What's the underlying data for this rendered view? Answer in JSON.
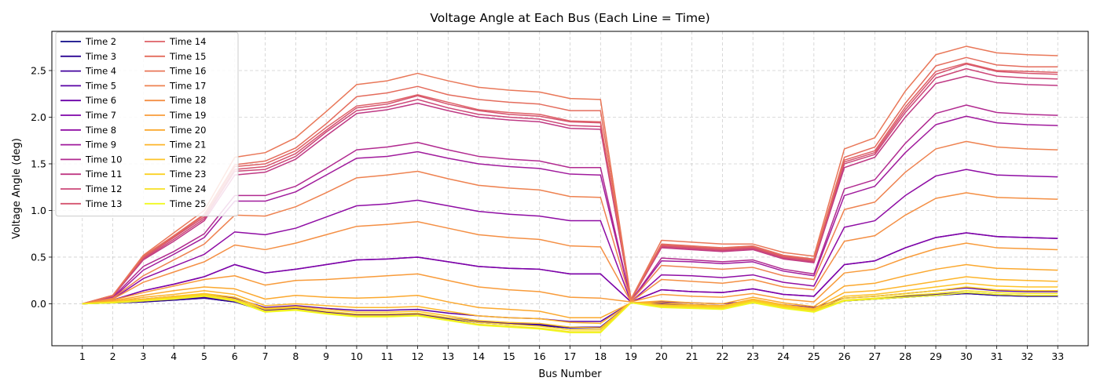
{
  "chart_data": {
    "type": "line",
    "title": "Voltage Angle at Each Bus (Each Line = Time)",
    "xlabel": "Bus Number",
    "ylabel": "Voltage Angle (deg)",
    "x": [
      1,
      2,
      3,
      4,
      5,
      6,
      7,
      8,
      9,
      10,
      11,
      12,
      13,
      14,
      15,
      16,
      17,
      18,
      19,
      20,
      21,
      22,
      23,
      24,
      25,
      26,
      27,
      28,
      29,
      30,
      31,
      32,
      33
    ],
    "x_ticks": [
      "1",
      "2",
      "3",
      "4",
      "5",
      "6",
      "7",
      "8",
      "9",
      "10",
      "11",
      "12",
      "13",
      "14",
      "15",
      "16",
      "17",
      "18",
      "19",
      "20",
      "21",
      "22",
      "23",
      "24",
      "25",
      "26",
      "27",
      "28",
      "29",
      "30",
      "31",
      "32",
      "33"
    ],
    "ylim": [
      -0.45,
      2.92
    ],
    "y_ticks": [
      0.0,
      0.5,
      1.0,
      1.5,
      2.0,
      2.5
    ],
    "y_tick_labels": [
      "0.0",
      "0.5",
      "1.0",
      "1.5",
      "2.0",
      "2.5"
    ],
    "grid": true,
    "legend_position": "upper-left",
    "legend_columns": 2,
    "series": [
      {
        "name": "Time 2",
        "color": "#0d0887",
        "values": [
          0,
          0.01,
          0.02,
          0.04,
          0.06,
          0.02,
          -0.08,
          -0.06,
          -0.1,
          -0.13,
          -0.13,
          -0.12,
          -0.16,
          -0.2,
          -0.22,
          -0.23,
          -0.26,
          -0.26,
          0.01,
          0.0,
          -0.01,
          -0.02,
          0.01,
          -0.03,
          -0.06,
          0.03,
          0.05,
          0.07,
          0.09,
          0.11,
          0.09,
          0.08,
          0.08
        ]
      },
      {
        "name": "Time 3",
        "color": "#2c0594",
        "values": [
          0,
          0.01,
          0.02,
          0.04,
          0.06,
          0.02,
          -0.08,
          -0.06,
          -0.1,
          -0.13,
          -0.13,
          -0.12,
          -0.16,
          -0.2,
          -0.22,
          -0.23,
          -0.26,
          -0.26,
          0.01,
          0.0,
          -0.01,
          -0.02,
          0.01,
          -0.03,
          -0.06,
          0.03,
          0.05,
          0.07,
          0.09,
          0.11,
          0.09,
          0.08,
          0.08
        ]
      },
      {
        "name": "Time 4",
        "color": "#43039e",
        "values": [
          0,
          0.02,
          0.03,
          0.05,
          0.07,
          0.03,
          -0.07,
          -0.05,
          -0.09,
          -0.12,
          -0.12,
          -0.11,
          -0.15,
          -0.19,
          -0.21,
          -0.22,
          -0.25,
          -0.25,
          0.01,
          0.0,
          -0.01,
          -0.02,
          0.02,
          -0.03,
          -0.06,
          0.03,
          0.05,
          0.08,
          0.1,
          0.12,
          0.1,
          0.09,
          0.09
        ]
      },
      {
        "name": "Time 5",
        "color": "#5901a5",
        "values": [
          0,
          0.02,
          0.05,
          0.08,
          0.1,
          0.06,
          -0.04,
          -0.02,
          -0.05,
          -0.07,
          -0.07,
          -0.06,
          -0.1,
          -0.13,
          -0.15,
          -0.16,
          -0.19,
          -0.19,
          0.01,
          0.02,
          0.01,
          0.0,
          0.03,
          -0.01,
          -0.04,
          0.06,
          0.08,
          0.11,
          0.14,
          0.17,
          0.14,
          0.13,
          0.13
        ]
      },
      {
        "name": "Time 6",
        "color": "#6a00a8",
        "values": [
          0,
          0.04,
          0.14,
          0.21,
          0.29,
          0.42,
          0.33,
          0.37,
          0.42,
          0.47,
          0.48,
          0.5,
          0.45,
          0.4,
          0.38,
          0.37,
          0.32,
          0.32,
          0.02,
          0.15,
          0.13,
          0.12,
          0.16,
          0.1,
          0.08,
          0.42,
          0.46,
          0.6,
          0.71,
          0.76,
          0.72,
          0.71,
          0.7
        ]
      },
      {
        "name": "Time 7",
        "color": "#7e03a8",
        "values": [
          0,
          0.04,
          0.14,
          0.21,
          0.29,
          0.42,
          0.33,
          0.37,
          0.42,
          0.47,
          0.48,
          0.5,
          0.45,
          0.4,
          0.38,
          0.37,
          0.32,
          0.32,
          0.02,
          0.15,
          0.13,
          0.12,
          0.16,
          0.1,
          0.08,
          0.42,
          0.46,
          0.6,
          0.71,
          0.76,
          0.72,
          0.71,
          0.7
        ]
      },
      {
        "name": "Time 8",
        "color": "#8f0da4",
        "values": [
          0,
          0.05,
          0.27,
          0.4,
          0.53,
          0.77,
          0.74,
          0.81,
          0.93,
          1.05,
          1.07,
          1.11,
          1.05,
          0.99,
          0.96,
          0.94,
          0.89,
          0.89,
          0.02,
          0.31,
          0.3,
          0.28,
          0.31,
          0.23,
          0.19,
          0.82,
          0.89,
          1.16,
          1.37,
          1.44,
          1.38,
          1.37,
          1.36
        ]
      },
      {
        "name": "Time 9",
        "color": "#a01a9c",
        "values": [
          0,
          0.06,
          0.36,
          0.53,
          0.71,
          1.1,
          1.1,
          1.2,
          1.38,
          1.56,
          1.58,
          1.63,
          1.56,
          1.5,
          1.47,
          1.45,
          1.39,
          1.38,
          0.03,
          0.46,
          0.45,
          0.43,
          0.45,
          0.35,
          0.3,
          1.16,
          1.26,
          1.62,
          1.92,
          2.01,
          1.94,
          1.92,
          1.91
        ]
      },
      {
        "name": "Time 10",
        "color": "#b12a90",
        "values": [
          0,
          0.07,
          0.4,
          0.56,
          0.75,
          1.16,
          1.16,
          1.26,
          1.45,
          1.65,
          1.68,
          1.73,
          1.65,
          1.58,
          1.55,
          1.53,
          1.46,
          1.46,
          0.03,
          0.49,
          0.47,
          0.45,
          0.47,
          0.37,
          0.32,
          1.23,
          1.33,
          1.72,
          2.04,
          2.13,
          2.05,
          2.03,
          2.02
        ]
      },
      {
        "name": "Time 11",
        "color": "#bf3984",
        "values": [
          0,
          0.08,
          0.47,
          0.67,
          0.89,
          1.38,
          1.41,
          1.55,
          1.8,
          2.04,
          2.08,
          2.15,
          2.07,
          2.0,
          1.97,
          1.95,
          1.88,
          1.87,
          0.04,
          0.6,
          0.58,
          0.56,
          0.58,
          0.48,
          0.44,
          1.46,
          1.57,
          2.0,
          2.36,
          2.44,
          2.37,
          2.35,
          2.34
        ]
      },
      {
        "name": "Time 12",
        "color": "#cc4778",
        "values": [
          0,
          0.08,
          0.48,
          0.69,
          0.91,
          1.42,
          1.44,
          1.58,
          1.84,
          2.07,
          2.11,
          2.19,
          2.1,
          2.03,
          2.0,
          1.98,
          1.91,
          1.9,
          0.04,
          0.61,
          0.59,
          0.57,
          0.59,
          0.49,
          0.45,
          1.5,
          1.6,
          2.05,
          2.42,
          2.52,
          2.44,
          2.42,
          2.41
        ]
      },
      {
        "name": "Time 13",
        "color": "#d5536f",
        "values": [
          0,
          0.09,
          0.49,
          0.71,
          0.93,
          1.44,
          1.47,
          1.61,
          1.86,
          2.1,
          2.14,
          2.23,
          2.14,
          2.07,
          2.03,
          2.01,
          1.95,
          1.94,
          0.04,
          0.62,
          0.6,
          0.58,
          0.6,
          0.5,
          0.46,
          1.52,
          1.62,
          2.08,
          2.46,
          2.57,
          2.49,
          2.47,
          2.46
        ]
      },
      {
        "name": "Time 14",
        "color": "#de6065",
        "values": [
          0,
          0.09,
          0.5,
          0.72,
          0.95,
          1.47,
          1.5,
          1.64,
          1.89,
          2.12,
          2.16,
          2.24,
          2.16,
          2.08,
          2.05,
          2.03,
          1.96,
          1.95,
          0.04,
          0.63,
          0.61,
          0.59,
          0.61,
          0.51,
          0.47,
          1.54,
          1.64,
          2.11,
          2.49,
          2.58,
          2.5,
          2.49,
          2.48
        ]
      },
      {
        "name": "Time 15",
        "color": "#e46c5c",
        "values": [
          0,
          0.09,
          0.51,
          0.73,
          0.96,
          1.49,
          1.53,
          1.67,
          1.93,
          2.22,
          2.26,
          2.33,
          2.24,
          2.19,
          2.16,
          2.14,
          2.07,
          2.07,
          0.05,
          0.64,
          0.62,
          0.6,
          0.62,
          0.52,
          0.48,
          1.57,
          1.68,
          2.15,
          2.55,
          2.64,
          2.56,
          2.54,
          2.54
        ]
      },
      {
        "name": "Time 16",
        "color": "#e97758",
        "values": [
          0,
          0.09,
          0.52,
          0.76,
          1.0,
          1.57,
          1.62,
          1.78,
          2.06,
          2.35,
          2.39,
          2.47,
          2.39,
          2.32,
          2.29,
          2.27,
          2.2,
          2.19,
          0.05,
          0.68,
          0.66,
          0.64,
          0.64,
          0.55,
          0.51,
          1.66,
          1.78,
          2.28,
          2.67,
          2.76,
          2.69,
          2.67,
          2.66
        ]
      },
      {
        "name": "Time 17",
        "color": "#ee8250",
        "values": [
          0,
          0.06,
          0.3,
          0.47,
          0.64,
          0.95,
          0.94,
          1.04,
          1.19,
          1.35,
          1.38,
          1.42,
          1.34,
          1.27,
          1.24,
          1.22,
          1.15,
          1.14,
          0.03,
          0.41,
          0.39,
          0.37,
          0.39,
          0.3,
          0.26,
          1.01,
          1.09,
          1.41,
          1.66,
          1.74,
          1.68,
          1.66,
          1.65
        ]
      },
      {
        "name": "Time 18",
        "color": "#f48f44",
        "values": [
          0,
          0.05,
          0.23,
          0.34,
          0.45,
          0.63,
          0.58,
          0.65,
          0.74,
          0.83,
          0.85,
          0.88,
          0.81,
          0.74,
          0.71,
          0.69,
          0.62,
          0.61,
          0.02,
          0.26,
          0.24,
          0.22,
          0.26,
          0.18,
          0.15,
          0.67,
          0.73,
          0.95,
          1.13,
          1.19,
          1.14,
          1.13,
          1.12
        ]
      },
      {
        "name": "Time 19",
        "color": "#f89b3a",
        "values": [
          0,
          0.04,
          0.12,
          0.19,
          0.26,
          0.3,
          0.2,
          0.25,
          0.26,
          0.28,
          0.3,
          0.32,
          0.25,
          0.18,
          0.15,
          0.13,
          0.07,
          0.06,
          0.02,
          0.1,
          0.08,
          0.07,
          0.11,
          0.05,
          0.02,
          0.33,
          0.37,
          0.49,
          0.59,
          0.65,
          0.6,
          0.59,
          0.58
        ]
      },
      {
        "name": "Time 20",
        "color": "#fba82e",
        "values": [
          0,
          0.03,
          0.09,
          0.14,
          0.18,
          0.16,
          0.05,
          0.09,
          0.07,
          0.06,
          0.07,
          0.09,
          0.02,
          -0.04,
          -0.06,
          -0.08,
          -0.15,
          -0.15,
          0.01,
          0.03,
          0.01,
          0.0,
          0.07,
          0.01,
          -0.03,
          0.19,
          0.22,
          0.3,
          0.37,
          0.42,
          0.38,
          0.37,
          0.36
        ]
      },
      {
        "name": "Time 21",
        "color": "#fdb52a",
        "values": [
          0,
          0.02,
          0.07,
          0.1,
          0.14,
          0.1,
          -0.02,
          0.0,
          -0.02,
          -0.04,
          -0.04,
          -0.03,
          -0.08,
          -0.13,
          -0.15,
          -0.16,
          -0.2,
          -0.21,
          0.01,
          0.01,
          -0.01,
          -0.02,
          0.05,
          -0.01,
          -0.05,
          0.12,
          0.14,
          0.19,
          0.24,
          0.29,
          0.26,
          0.25,
          0.24
        ]
      },
      {
        "name": "Time 22",
        "color": "#fdc328",
        "values": [
          0,
          0.02,
          0.05,
          0.08,
          0.11,
          0.07,
          -0.05,
          -0.03,
          -0.06,
          -0.09,
          -0.09,
          -0.08,
          -0.13,
          -0.18,
          -0.2,
          -0.21,
          -0.25,
          -0.26,
          0.01,
          -0.01,
          -0.02,
          -0.03,
          0.04,
          -0.02,
          -0.06,
          0.08,
          0.1,
          0.14,
          0.18,
          0.22,
          0.19,
          0.18,
          0.18
        ]
      },
      {
        "name": "Time 23",
        "color": "#fbd124",
        "values": [
          0,
          0.02,
          0.04,
          0.07,
          0.1,
          0.05,
          -0.06,
          -0.04,
          -0.08,
          -0.11,
          -0.11,
          -0.1,
          -0.15,
          -0.2,
          -0.22,
          -0.24,
          -0.28,
          -0.28,
          0.01,
          -0.02,
          -0.03,
          -0.04,
          0.03,
          -0.03,
          -0.07,
          0.06,
          0.08,
          0.11,
          0.14,
          0.18,
          0.15,
          0.14,
          0.14
        ]
      },
      {
        "name": "Time 24",
        "color": "#f6e122",
        "values": [
          0,
          0.01,
          0.03,
          0.06,
          0.09,
          0.04,
          -0.08,
          -0.06,
          -0.1,
          -0.13,
          -0.13,
          -0.12,
          -0.17,
          -0.22,
          -0.24,
          -0.26,
          -0.3,
          -0.3,
          0.01,
          -0.03,
          -0.04,
          -0.05,
          0.02,
          -0.04,
          -0.08,
          0.04,
          0.06,
          0.09,
          0.11,
          0.14,
          0.12,
          0.11,
          0.11
        ]
      },
      {
        "name": "Time 25",
        "color": "#f0f921",
        "values": [
          0,
          0.01,
          0.03,
          0.05,
          0.08,
          0.03,
          -0.09,
          -0.07,
          -0.11,
          -0.14,
          -0.14,
          -0.13,
          -0.18,
          -0.23,
          -0.25,
          -0.27,
          -0.31,
          -0.31,
          0.01,
          -0.04,
          -0.05,
          -0.06,
          0.01,
          -0.05,
          -0.09,
          0.03,
          0.05,
          0.07,
          0.09,
          0.12,
          0.1,
          0.09,
          0.09
        ]
      }
    ]
  }
}
